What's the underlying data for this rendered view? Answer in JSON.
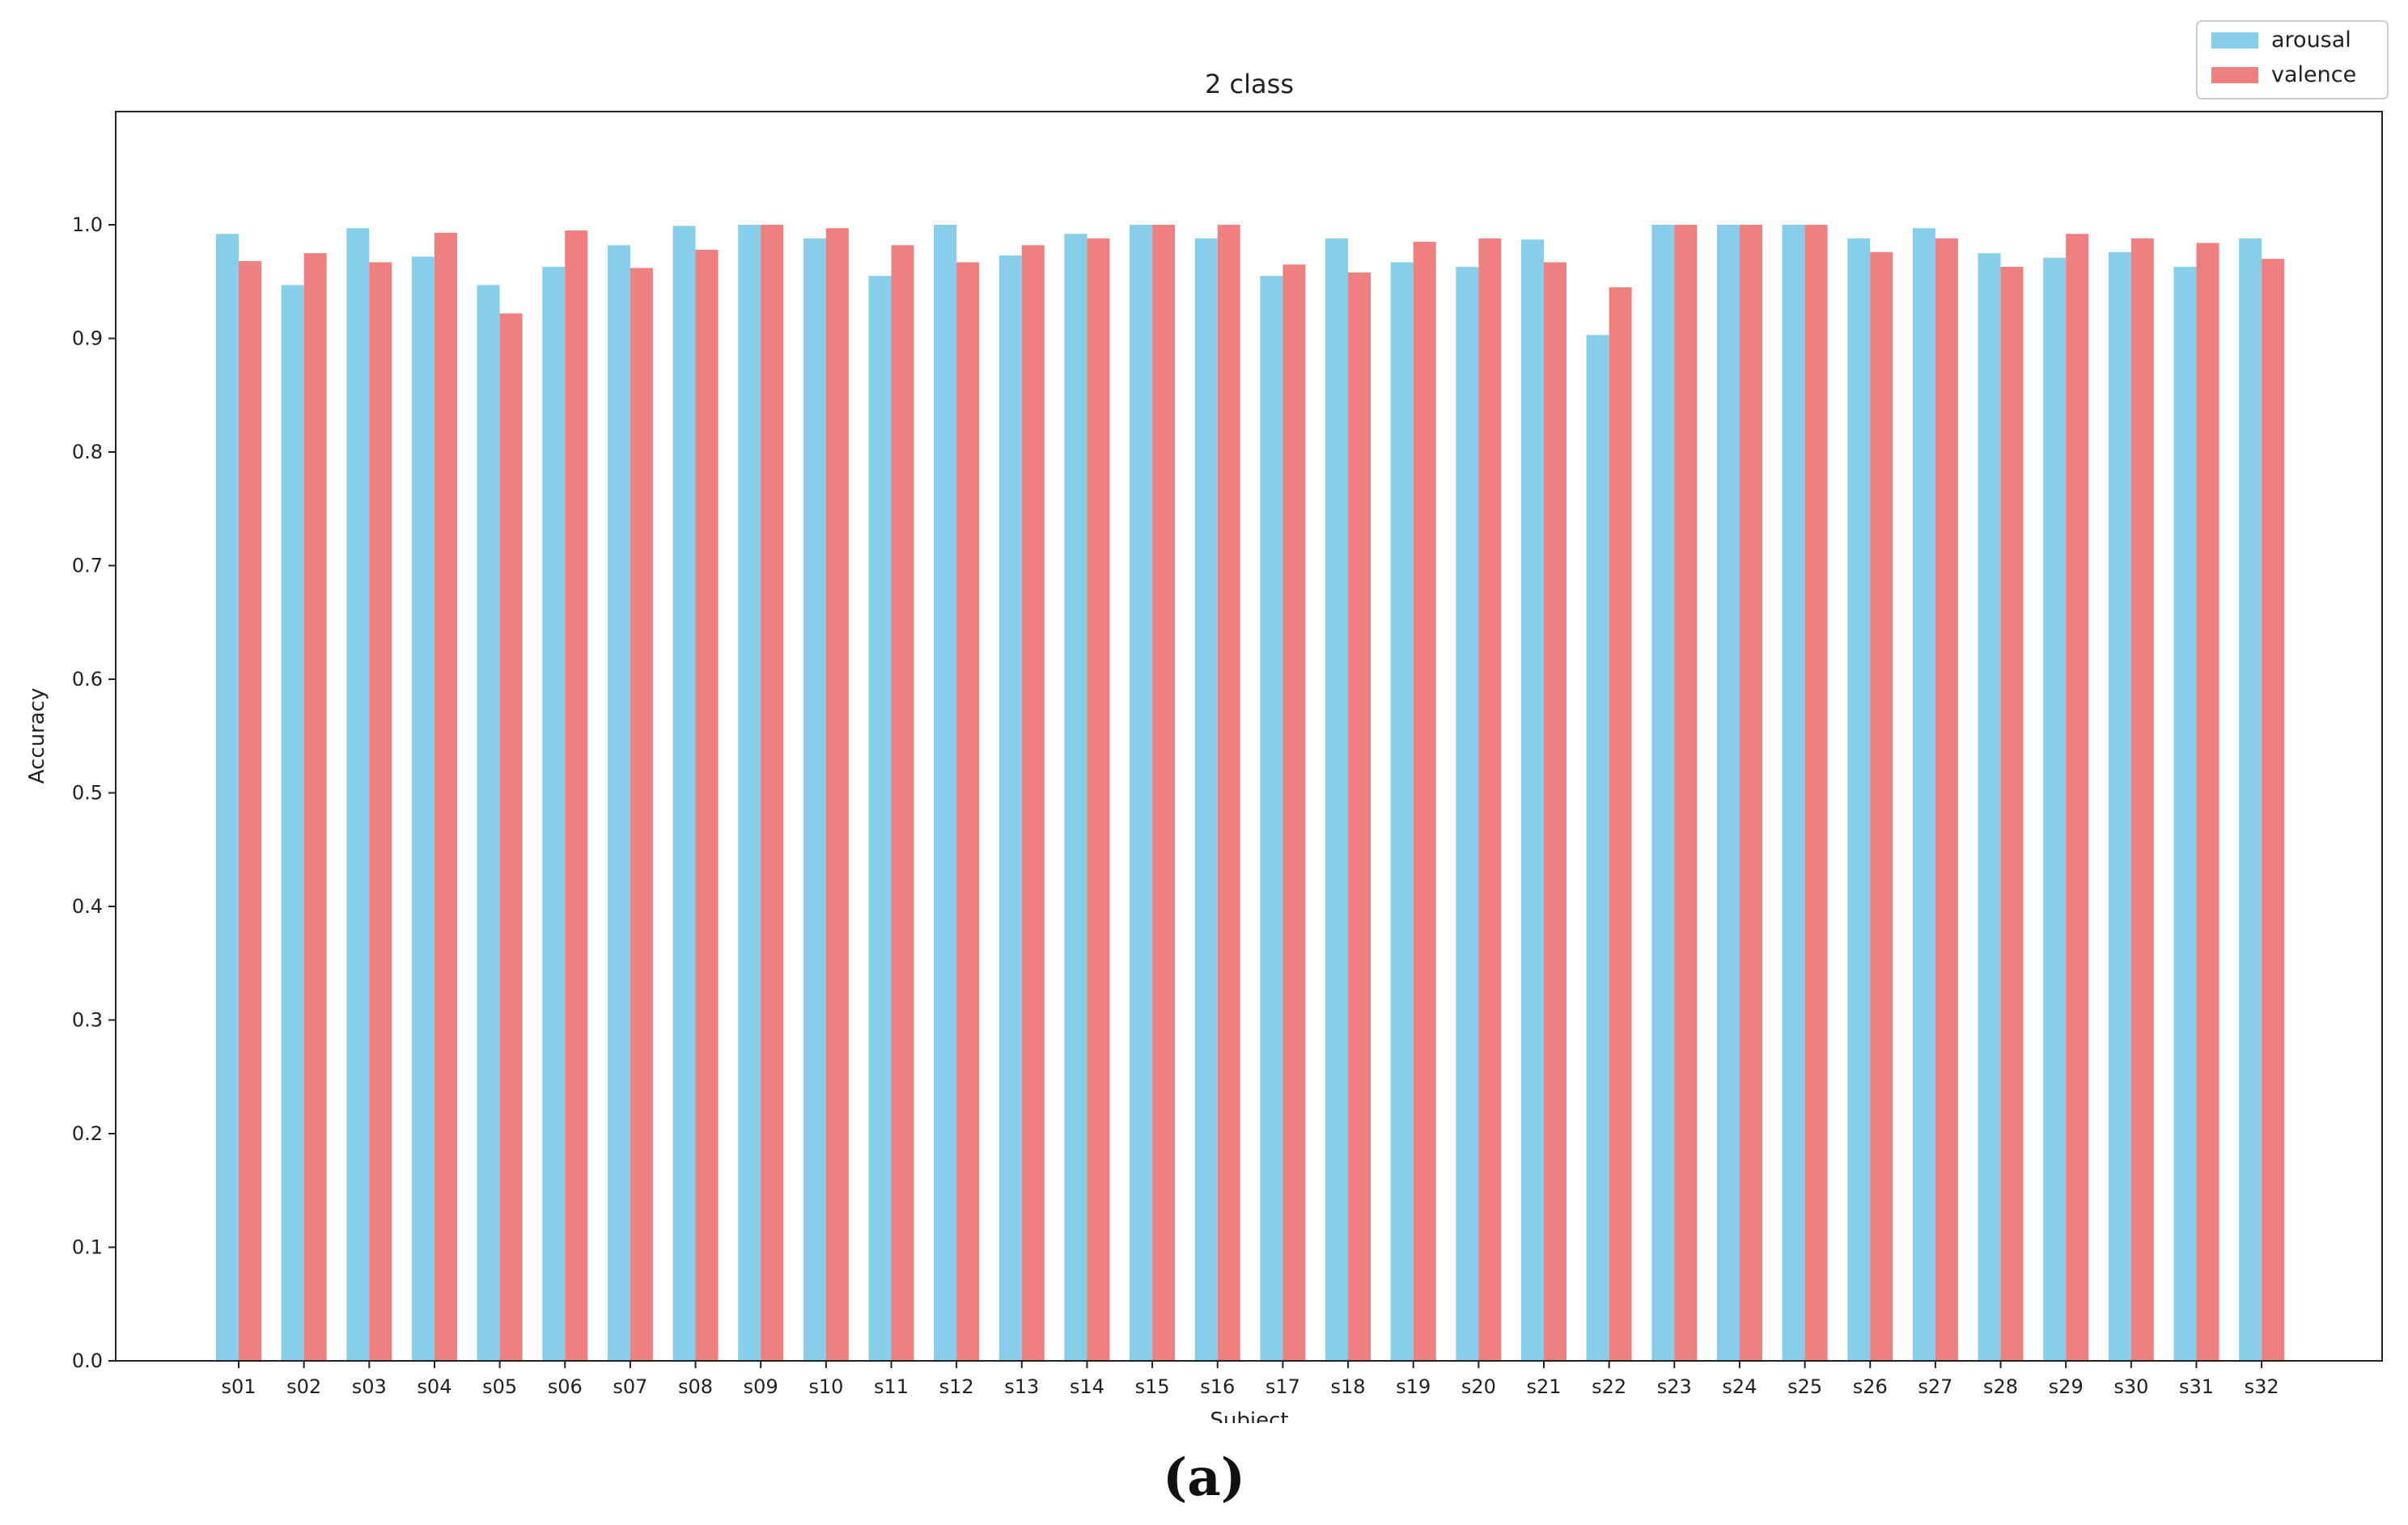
{
  "chart_data": {
    "type": "bar",
    "title": "2 class",
    "xlabel": "Subject",
    "ylabel": "Accuracy",
    "ylim": [
      0,
      1.1
    ],
    "yticks": [
      "0.0",
      "0.1",
      "0.2",
      "0.3",
      "0.4",
      "0.5",
      "0.6",
      "0.7",
      "0.8",
      "0.9",
      "1.0"
    ],
    "categories": [
      "s01",
      "s02",
      "s03",
      "s04",
      "s05",
      "s06",
      "s07",
      "s08",
      "s09",
      "s10",
      "s11",
      "s12",
      "s13",
      "s14",
      "s15",
      "s16",
      "s17",
      "s18",
      "s19",
      "s20",
      "s21",
      "s22",
      "s23",
      "s24",
      "s25",
      "s26",
      "s27",
      "s28",
      "s29",
      "s30",
      "s31",
      "s32"
    ],
    "series": [
      {
        "name": "arousal",
        "color": "#87CEEB",
        "values": [
          0.992,
          0.947,
          0.997,
          0.972,
          0.947,
          0.963,
          0.982,
          0.999,
          1.0,
          0.988,
          0.955,
          1.0,
          0.973,
          0.992,
          1.0,
          0.988,
          0.955,
          0.988,
          0.967,
          0.963,
          0.987,
          0.903,
          1.0,
          1.0,
          1.0,
          0.988,
          0.997,
          0.975,
          0.971,
          0.976,
          0.963,
          0.988
        ]
      },
      {
        "name": "valence",
        "color": "#F08080",
        "values": [
          0.968,
          0.975,
          0.967,
          0.993,
          0.922,
          0.995,
          0.962,
          0.978,
          1.0,
          0.997,
          0.982,
          0.967,
          0.982,
          0.988,
          1.0,
          1.0,
          0.965,
          0.958,
          0.985,
          0.988,
          0.967,
          0.945,
          1.0,
          1.0,
          1.0,
          0.976,
          0.988,
          0.963,
          0.992,
          0.988,
          0.984,
          0.97
        ]
      }
    ],
    "grid": false,
    "legend_position": "top-right"
  },
  "panel_label": "(a)"
}
